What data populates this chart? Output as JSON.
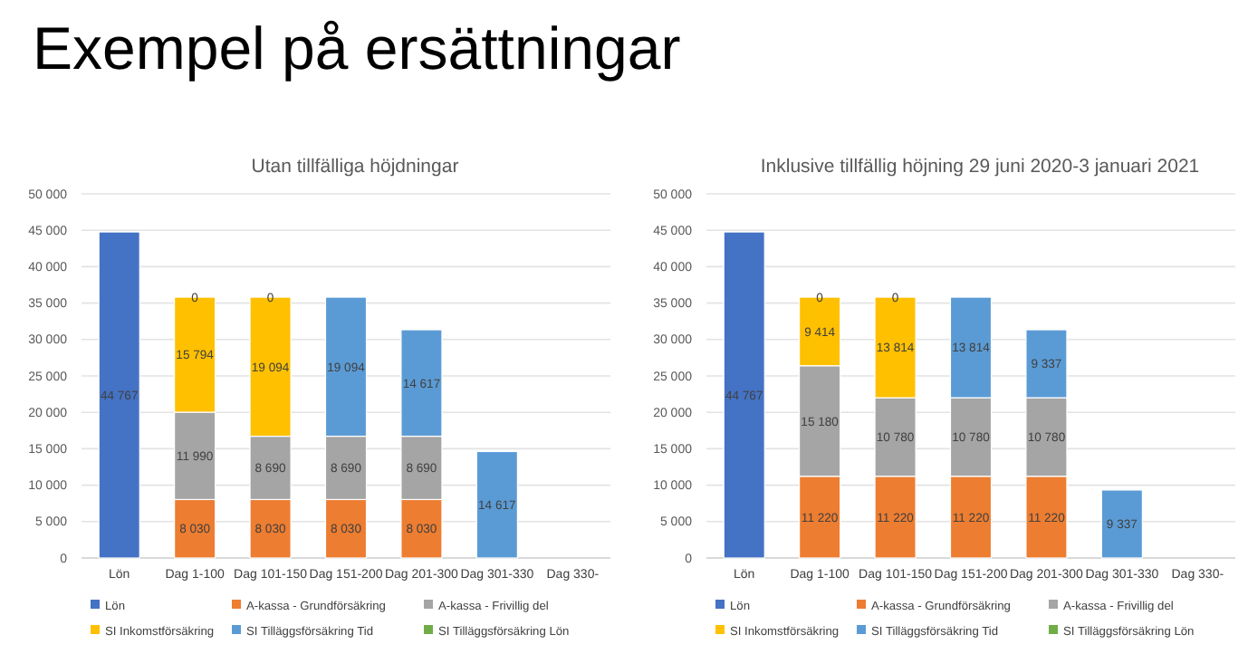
{
  "chart_data": [
    {
      "type": "bar",
      "title": "Utan tillfälliga höjdningar",
      "annotations": [
        "Exempel på ersättningar"
      ],
      "categories": [
        "Lön",
        "Dag 1-100",
        "Dag 101-150",
        "Dag 151-200",
        "Dag 201-300",
        "Dag 301-330",
        "Dag 330-"
      ],
      "stacked": true,
      "grid": "y",
      "legend": "bottom",
      "ylim": [
        0,
        50000
      ],
      "yticks": [
        {
          "value": 0,
          "label": "0"
        },
        {
          "value": 5000,
          "label": "5 000"
        },
        {
          "value": 10000,
          "label": "10 000"
        },
        {
          "value": 15000,
          "label": "15 000"
        },
        {
          "value": 20000,
          "label": "20 000"
        },
        {
          "value": 25000,
          "label": "25 000"
        },
        {
          "value": 30000,
          "label": "30 000"
        },
        {
          "value": 35000,
          "label": "35 000"
        },
        {
          "value": 40000,
          "label": "40 000"
        },
        {
          "value": 45000,
          "label": "45 000"
        },
        {
          "value": 50000,
          "label": "50 000"
        }
      ],
      "series": [
        {
          "name": "Lön",
          "color": "#4472c4",
          "values": [
            44767,
            null,
            null,
            null,
            null,
            null,
            null
          ],
          "value_labels": [
            "44 767",
            null,
            null,
            null,
            null,
            null,
            null
          ]
        },
        {
          "name": "A-kassa - Grundförsäkring",
          "color": "#ed7d31",
          "values": [
            null,
            8030,
            8030,
            8030,
            8030,
            null,
            null
          ],
          "value_labels": [
            null,
            "8 030",
            "8 030",
            "8 030",
            "8 030",
            null,
            null
          ]
        },
        {
          "name": "A-kassa - Frivillig del",
          "color": "#a5a5a5",
          "values": [
            null,
            11990,
            8690,
            8690,
            8690,
            null,
            null
          ],
          "value_labels": [
            null,
            "11 990",
            "8 690",
            "8 690",
            "8 690",
            null,
            null
          ]
        },
        {
          "name": "SI Inkomstförsäkring",
          "color": "#ffc000",
          "values": [
            null,
            15794,
            19094,
            null,
            null,
            null,
            null
          ],
          "value_labels": [
            null,
            "15 794",
            "19 094",
            null,
            null,
            null,
            null
          ]
        },
        {
          "name": "SI Tilläggsförsäkring Tid",
          "color": "#5b9bd5",
          "values": [
            null,
            null,
            null,
            19094,
            14617,
            14617,
            null
          ],
          "value_labels": [
            null,
            null,
            null,
            "19 094",
            "14 617",
            "14 617",
            null
          ]
        },
        {
          "name": "SI Tilläggsförsäkring Lön",
          "color": "#70ad47",
          "values": [
            null,
            0,
            0,
            null,
            null,
            null,
            null
          ],
          "value_labels": [
            null,
            "0",
            "0",
            null,
            null,
            null,
            null
          ]
        }
      ]
    },
    {
      "type": "bar",
      "title": "Inklusive tillfällig höjning 29 juni 2020-3 januari 2021",
      "categories": [
        "Lön",
        "Dag 1-100",
        "Dag 101-150",
        "Dag 151-200",
        "Dag 201-300",
        "Dag 301-330",
        "Dag 330-"
      ],
      "stacked": true,
      "grid": "y",
      "legend": "bottom",
      "ylim": [
        0,
        50000
      ],
      "yticks": [
        {
          "value": 0,
          "label": "0"
        },
        {
          "value": 5000,
          "label": "5 000"
        },
        {
          "value": 10000,
          "label": "10 000"
        },
        {
          "value": 15000,
          "label": "15 000"
        },
        {
          "value": 20000,
          "label": "20 000"
        },
        {
          "value": 25000,
          "label": "25 000"
        },
        {
          "value": 30000,
          "label": "30 000"
        },
        {
          "value": 35000,
          "label": "35 000"
        },
        {
          "value": 40000,
          "label": "40 000"
        },
        {
          "value": 45000,
          "label": "45 000"
        },
        {
          "value": 50000,
          "label": "50 000"
        }
      ],
      "series": [
        {
          "name": "Lön",
          "color": "#4472c4",
          "values": [
            44767,
            null,
            null,
            null,
            null,
            null,
            null
          ],
          "value_labels": [
            "44 767",
            null,
            null,
            null,
            null,
            null,
            null
          ]
        },
        {
          "name": "A-kassa - Grundförsäkring",
          "color": "#ed7d31",
          "values": [
            null,
            11220,
            11220,
            11220,
            11220,
            null,
            null
          ],
          "value_labels": [
            null,
            "11 220",
            "11 220",
            "11 220",
            "11 220",
            null,
            null
          ]
        },
        {
          "name": "A-kassa - Frivillig del",
          "color": "#a5a5a5",
          "values": [
            null,
            15180,
            10780,
            10780,
            10780,
            null,
            null
          ],
          "value_labels": [
            null,
            "15 180",
            "10 780",
            "10 780",
            "10 780",
            null,
            null
          ]
        },
        {
          "name": "SI Inkomstförsäkring",
          "color": "#ffc000",
          "values": [
            null,
            9414,
            13814,
            null,
            null,
            null,
            null
          ],
          "value_labels": [
            null,
            "9 414",
            "13 814",
            null,
            null,
            null,
            null
          ]
        },
        {
          "name": "SI Tilläggsförsäkring Tid",
          "color": "#5b9bd5",
          "values": [
            null,
            null,
            null,
            13814,
            9337,
            9337,
            null
          ],
          "value_labels": [
            null,
            null,
            null,
            "13 814",
            "9 337",
            "9 337",
            null
          ]
        },
        {
          "name": "SI Tilläggsförsäkring Lön",
          "color": "#70ad47",
          "values": [
            null,
            0,
            0,
            null,
            null,
            null,
            null
          ],
          "value_labels": [
            null,
            "0",
            "0",
            null,
            null,
            null,
            null
          ]
        }
      ]
    }
  ]
}
